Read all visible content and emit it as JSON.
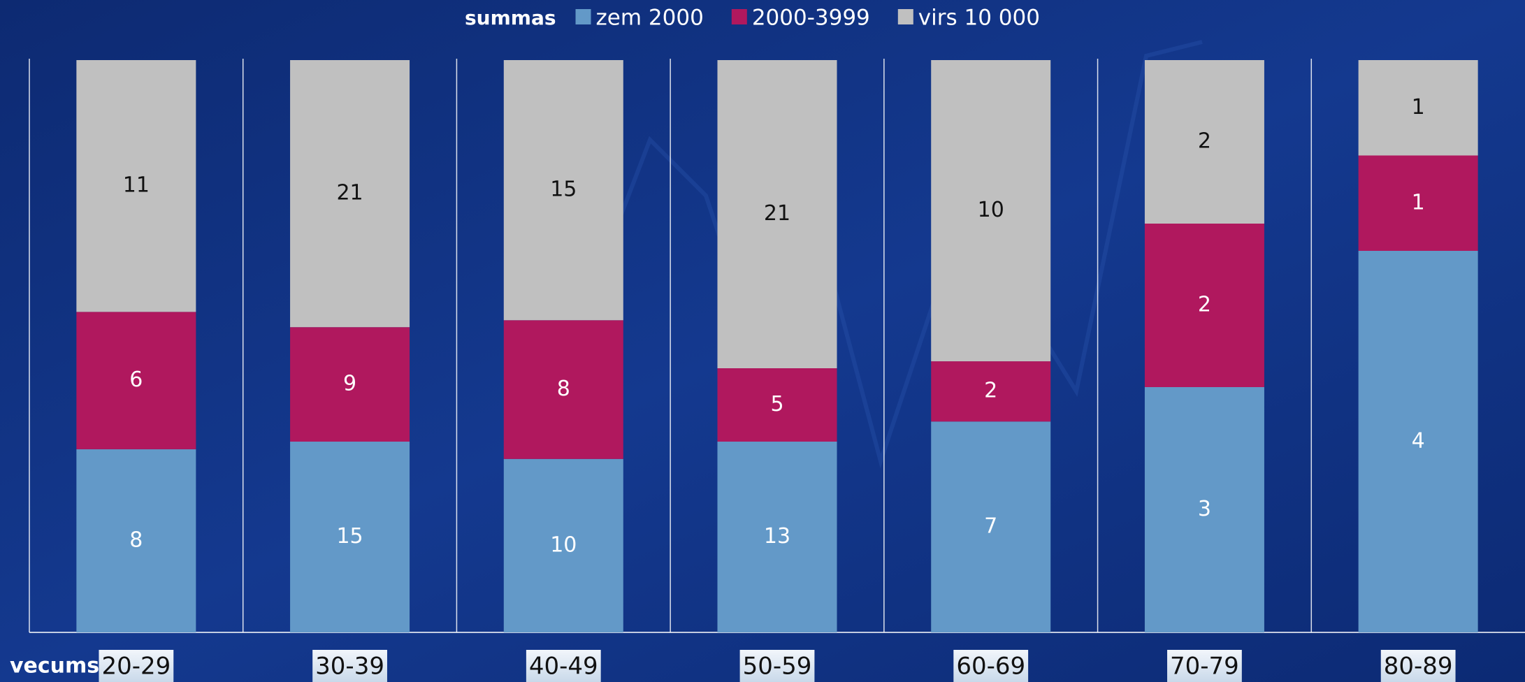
{
  "chart_data": {
    "type": "bar",
    "stacking": "percent",
    "legend_title": "summas",
    "x_label": "vecums",
    "categories": [
      "20-29",
      "30-39",
      "40-49",
      "50-59",
      "60-69",
      "70-79",
      "80-89"
    ],
    "series": [
      {
        "name": "zem 2000",
        "color": "#6399c8",
        "values": [
          8,
          15,
          10,
          13,
          7,
          3,
          4
        ]
      },
      {
        "name": "2000-3999",
        "color": "#b0185e",
        "values": [
          6,
          9,
          8,
          5,
          2,
          2,
          1
        ]
      },
      {
        "name": "virs 10 000",
        "color": "#c0c0c0",
        "values": [
          11,
          21,
          15,
          21,
          10,
          2,
          1
        ]
      }
    ],
    "legend": "top"
  }
}
